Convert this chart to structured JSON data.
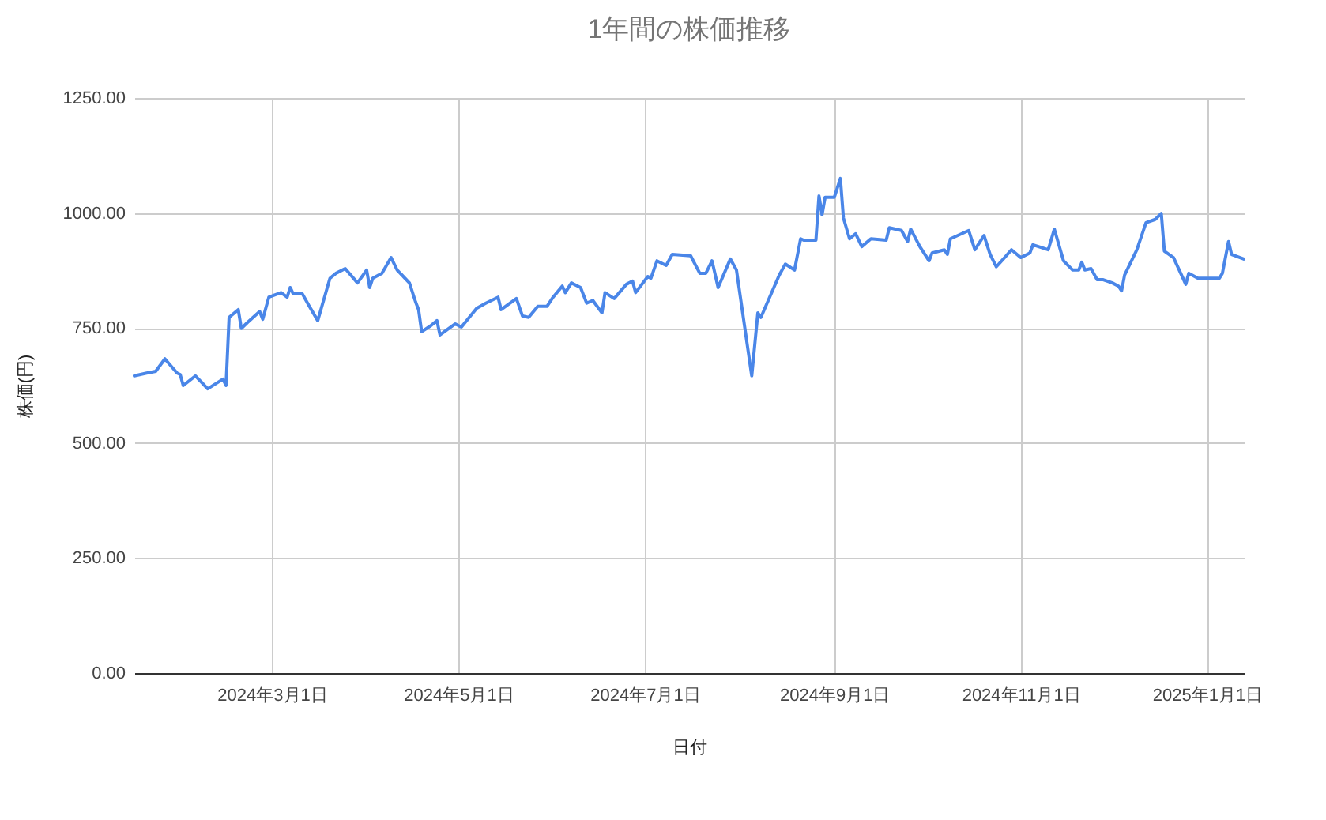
{
  "chart_data": {
    "type": "line",
    "title": "1年間の株価推移",
    "xlabel": "日付",
    "ylabel": "株価(円)",
    "grid": true,
    "x": [
      "2024-01-16",
      "2024-01-20",
      "2024-01-23",
      "2024-01-26",
      "2024-01-30",
      "2024-01-31",
      "2024-02-01",
      "2024-02-05",
      "2024-02-09",
      "2024-02-14",
      "2024-02-15",
      "2024-02-16",
      "2024-02-19",
      "2024-02-20",
      "2024-02-22",
      "2024-02-26",
      "2024-02-27",
      "2024-02-29",
      "2024-03-04",
      "2024-03-06",
      "2024-03-07",
      "2024-03-08",
      "2024-03-11",
      "2024-03-13",
      "2024-03-16",
      "2024-03-20",
      "2024-03-22",
      "2024-03-25",
      "2024-03-29",
      "2024-04-01",
      "2024-04-02",
      "2024-04-03",
      "2024-04-06",
      "2024-04-09",
      "2024-04-11",
      "2024-04-15",
      "2024-04-17",
      "2024-04-18",
      "2024-04-19",
      "2024-04-22",
      "2024-04-24",
      "2024-04-25",
      "2024-04-30",
      "2024-05-02",
      "2024-05-07",
      "2024-05-10",
      "2024-05-14",
      "2024-05-15",
      "2024-05-20",
      "2024-05-22",
      "2024-05-24",
      "2024-05-27",
      "2024-05-30",
      "2024-06-01",
      "2024-06-04",
      "2024-06-05",
      "2024-06-07",
      "2024-06-10",
      "2024-06-12",
      "2024-06-14",
      "2024-06-17",
      "2024-06-18",
      "2024-06-21",
      "2024-06-25",
      "2024-06-27",
      "2024-06-28",
      "2024-07-02",
      "2024-07-03",
      "2024-07-05",
      "2024-07-08",
      "2024-07-10",
      "2024-07-16",
      "2024-07-19",
      "2024-07-21",
      "2024-07-23",
      "2024-07-25",
      "2024-07-29",
      "2024-07-31",
      "2024-08-05",
      "2024-08-07",
      "2024-08-08",
      "2024-08-14",
      "2024-08-16",
      "2024-08-19",
      "2024-08-21",
      "2024-08-22",
      "2024-08-26",
      "2024-08-27",
      "2024-08-28",
      "2024-08-29",
      "2024-09-01",
      "2024-09-03",
      "2024-09-04",
      "2024-09-06",
      "2024-09-08",
      "2024-09-10",
      "2024-09-13",
      "2024-09-18",
      "2024-09-19",
      "2024-09-23",
      "2024-09-25",
      "2024-09-26",
      "2024-09-29",
      "2024-10-02",
      "2024-10-03",
      "2024-10-07",
      "2024-10-08",
      "2024-10-09",
      "2024-10-15",
      "2024-10-17",
      "2024-10-20",
      "2024-10-22",
      "2024-10-24",
      "2024-10-29",
      "2024-11-01",
      "2024-11-04",
      "2024-11-05",
      "2024-11-10",
      "2024-11-12",
      "2024-11-15",
      "2024-11-18",
      "2024-11-20",
      "2024-11-21",
      "2024-11-22",
      "2024-11-24",
      "2024-11-26",
      "2024-11-28",
      "2024-12-01",
      "2024-12-03",
      "2024-12-04",
      "2024-12-05",
      "2024-12-09",
      "2024-12-12",
      "2024-12-15",
      "2024-12-17",
      "2024-12-18",
      "2024-12-21",
      "2024-12-25",
      "2024-12-26",
      "2024-12-29",
      "2025-01-05",
      "2025-01-06",
      "2025-01-08",
      "2025-01-09",
      "2025-01-13"
    ],
    "series": [
      {
        "color": "#4a86e8",
        "values": [
          646,
          652,
          656,
          683,
          652,
          649,
          625,
          646,
          618,
          639,
          625,
          773,
          790,
          749,
          762,
          786,
          769,
          817,
          827,
          817,
          838,
          824,
          824,
          800,
          766,
          858,
          869,
          879,
          848,
          876,
          838,
          858,
          869,
          903,
          876,
          848,
          807,
          790,
          742,
          755,
          766,
          735,
          759,
          752,
          793,
          804,
          817,
          790,
          814,
          776,
          773,
          797,
          797,
          817,
          841,
          827,
          848,
          838,
          804,
          810,
          783,
          827,
          814,
          845,
          852,
          827,
          862,
          858,
          896,
          886,
          910,
          907,
          869,
          869,
          896,
          838,
          900,
          876,
          646,
          783,
          773,
          865,
          889,
          876,
          944,
          941,
          941,
          1037,
          996,
          1034,
          1034,
          1075,
          989,
          944,
          955,
          927,
          944,
          941,
          968,
          962,
          938,
          965,
          927,
          896,
          913,
          920,
          910,
          944,
          962,
          920,
          951,
          910,
          883,
          920,
          903,
          913,
          931,
          920,
          965,
          896,
          876,
          876,
          893,
          876,
          879,
          855,
          855,
          848,
          841,
          831,
          865,
          920,
          979,
          986,
          999,
          917,
          903,
          845,
          869,
          858,
          858,
          869,
          938,
          910,
          900
        ]
      }
    ],
    "xlim": [
      "2024-01-16",
      "2025-01-13"
    ],
    "xticks": [
      {
        "value": "2024-03-01",
        "label": "2024年3月1日"
      },
      {
        "value": "2024-05-01",
        "label": "2024年5月1日"
      },
      {
        "value": "2024-07-01",
        "label": "2024年7月1日"
      },
      {
        "value": "2024-09-01",
        "label": "2024年9月1日"
      },
      {
        "value": "2024-11-01",
        "label": "2024年11月1日"
      },
      {
        "value": "2025-01-01",
        "label": "2025年1月1日"
      }
    ],
    "ylim": [
      0,
      1250
    ],
    "yticks": [
      {
        "value": 0,
        "label": "0.00"
      },
      {
        "value": 250,
        "label": "250.00"
      },
      {
        "value": 500,
        "label": "500.00"
      },
      {
        "value": 750,
        "label": "750.00"
      },
      {
        "value": 1000,
        "label": "1000.00"
      },
      {
        "value": 1250,
        "label": "1250.00"
      }
    ]
  }
}
